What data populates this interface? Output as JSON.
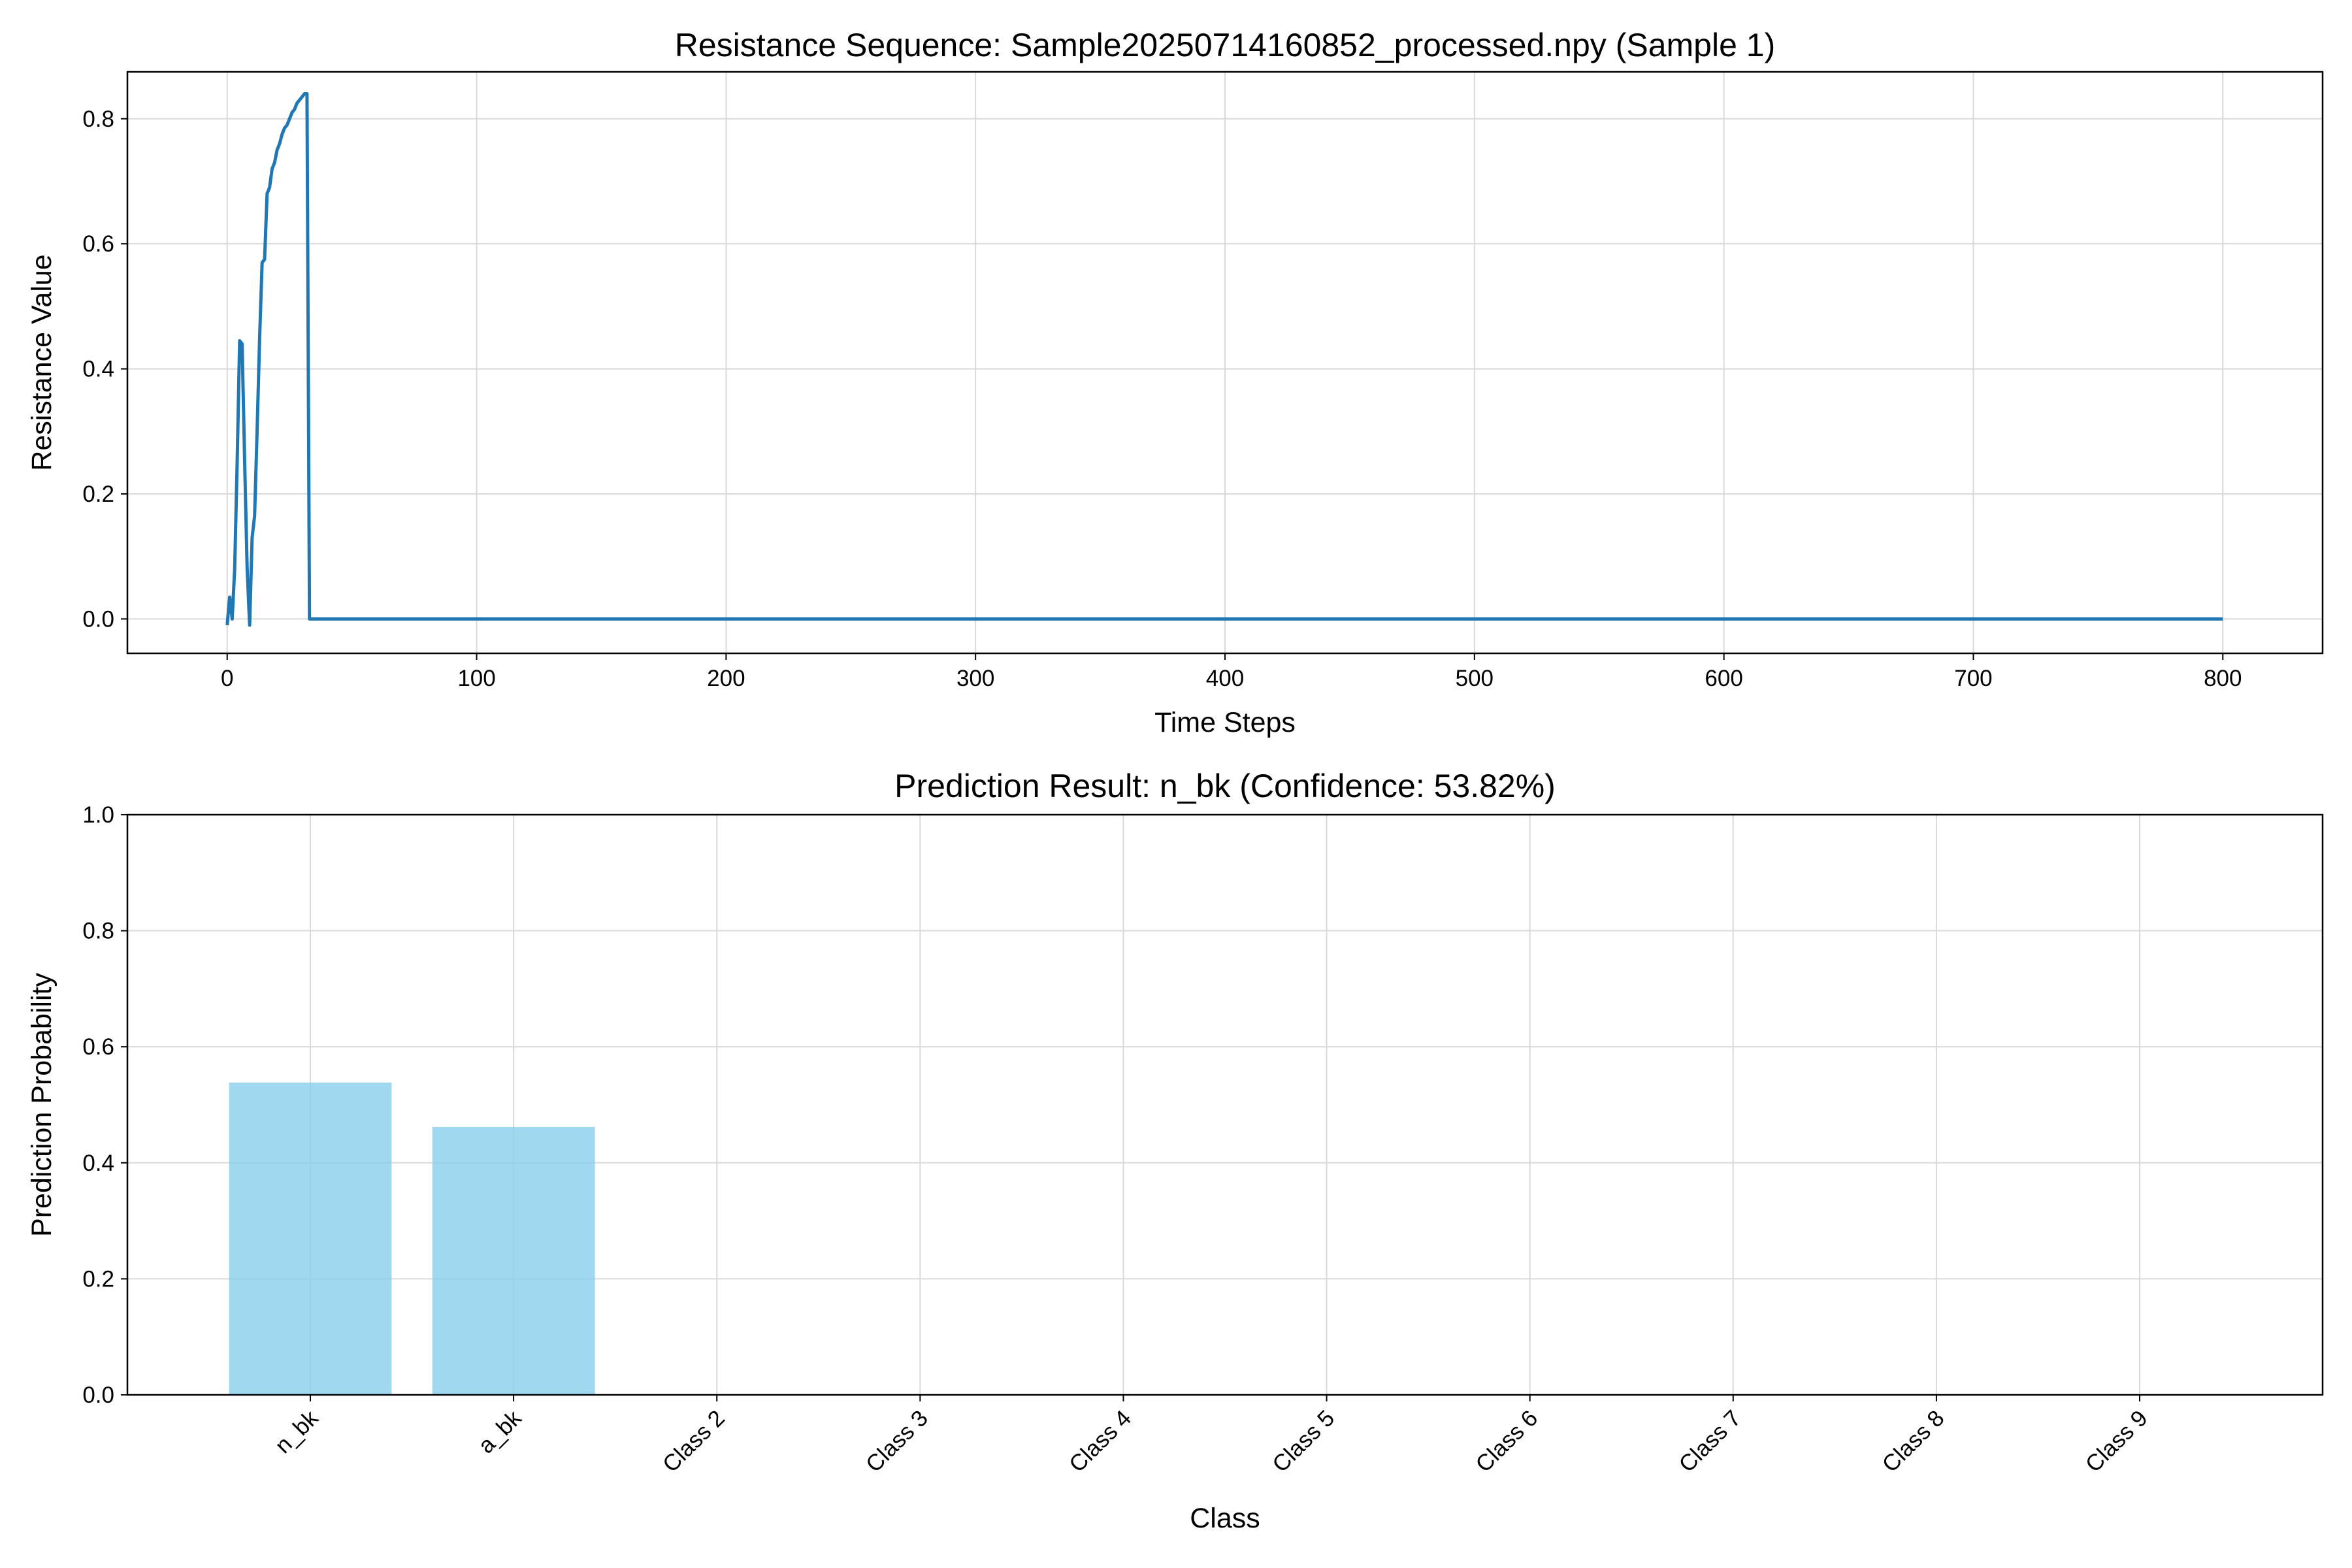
{
  "chart_data": [
    {
      "type": "line",
      "title": "Resistance Sequence: Sample20250714160852_processed.npy (Sample 1)",
      "xlabel": "Time Steps",
      "ylabel": "Resistance Value",
      "xlim": [
        -40,
        840
      ],
      "ylim": [
        -0.055,
        0.875
      ],
      "xticks": [
        0,
        100,
        200,
        300,
        400,
        500,
        600,
        700,
        800
      ],
      "xtick_labels": [
        "0",
        "100",
        "200",
        "300",
        "400",
        "500",
        "600",
        "700",
        "800"
      ],
      "yticks": [
        0.0,
        0.2,
        0.4,
        0.6,
        0.8
      ],
      "ytick_labels": [
        "0.0",
        "0.2",
        "0.4",
        "0.6",
        "0.8"
      ],
      "grid": true,
      "series": [
        {
          "color": "#1f77b4",
          "x": [
            0,
            1,
            2,
            3,
            4,
            5,
            6,
            7,
            8,
            9,
            10,
            11,
            12,
            13,
            14,
            15,
            16,
            17,
            18,
            19,
            20,
            21,
            22,
            23,
            24,
            25,
            26,
            27,
            28,
            29,
            30,
            31,
            32,
            33,
            34,
            35,
            36,
            37,
            38,
            39,
            40,
            41,
            42,
            43,
            800
          ],
          "y": [
            -0.01,
            0.035,
            0.0,
            0.08,
            0.25,
            0.445,
            0.44,
            0.25,
            0.08,
            -0.01,
            0.13,
            0.165,
            0.3,
            0.45,
            0.57,
            0.575,
            0.68,
            0.69,
            0.72,
            0.73,
            0.75,
            0.76,
            0.775,
            0.785,
            0.79,
            0.8,
            0.81,
            0.815,
            0.825,
            0.83,
            0.835,
            0.84,
            0.84,
            0.0,
            0.0,
            0.0,
            0.0,
            0.0,
            0.0,
            0.0,
            0.0,
            0.0,
            0.0,
            0.0,
            0.0
          ]
        }
      ]
    },
    {
      "type": "bar",
      "title": "Prediction Result: n_bk (Confidence: 53.82%)",
      "xlabel": "Class",
      "ylabel": "Prediction Probability",
      "categories": [
        "n_bk",
        "a_bk",
        "Class 2",
        "Class 3",
        "Class 4",
        "Class 5",
        "Class 6",
        "Class 7",
        "Class 8",
        "Class 9"
      ],
      "values": [
        0.5382,
        0.4618,
        0,
        0,
        0,
        0,
        0,
        0,
        0,
        0
      ],
      "ylim": [
        0,
        1.0
      ],
      "yticks": [
        0.0,
        0.2,
        0.4,
        0.6,
        0.8,
        1.0
      ],
      "ytick_labels": [
        "0.0",
        "0.2",
        "0.4",
        "0.6",
        "0.8",
        "1.0"
      ],
      "bar_color": "#87ceeb",
      "grid": true,
      "xtick_rotation": 45
    }
  ]
}
